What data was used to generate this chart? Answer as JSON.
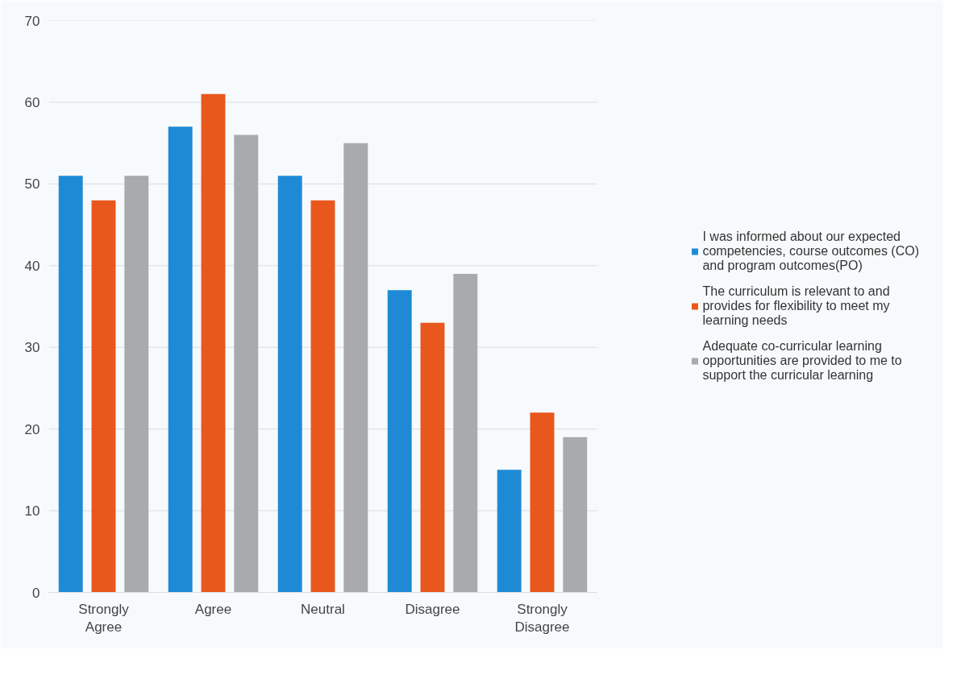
{
  "chart_data": {
    "type": "bar",
    "categories": [
      "Strongly Agree",
      "Agree",
      "Neutral",
      "Disagree",
      "Strongly Disagree"
    ],
    "series": [
      {
        "name": "I was informed about our expected competencies, course outcomes (CO) and program outcomes(PO)",
        "color": "#1e8ad6",
        "values": [
          51,
          57,
          51,
          37,
          15
        ]
      },
      {
        "name": "The curriculum is relevant to and provides for flexibility to meet my learning needs",
        "color": "#e8581c",
        "values": [
          48,
          61,
          48,
          33,
          22
        ]
      },
      {
        "name": "Adequate co-curricular learning opportunities are provided to me to support the curricular learning",
        "color": "#a8aaae",
        "values": [
          51,
          56,
          55,
          39,
          19
        ]
      }
    ],
    "ylim": [
      0,
      70
    ],
    "yticks": [
      0,
      10,
      20,
      30,
      40,
      50,
      60,
      70
    ],
    "grid": "y",
    "legend": "right"
  }
}
